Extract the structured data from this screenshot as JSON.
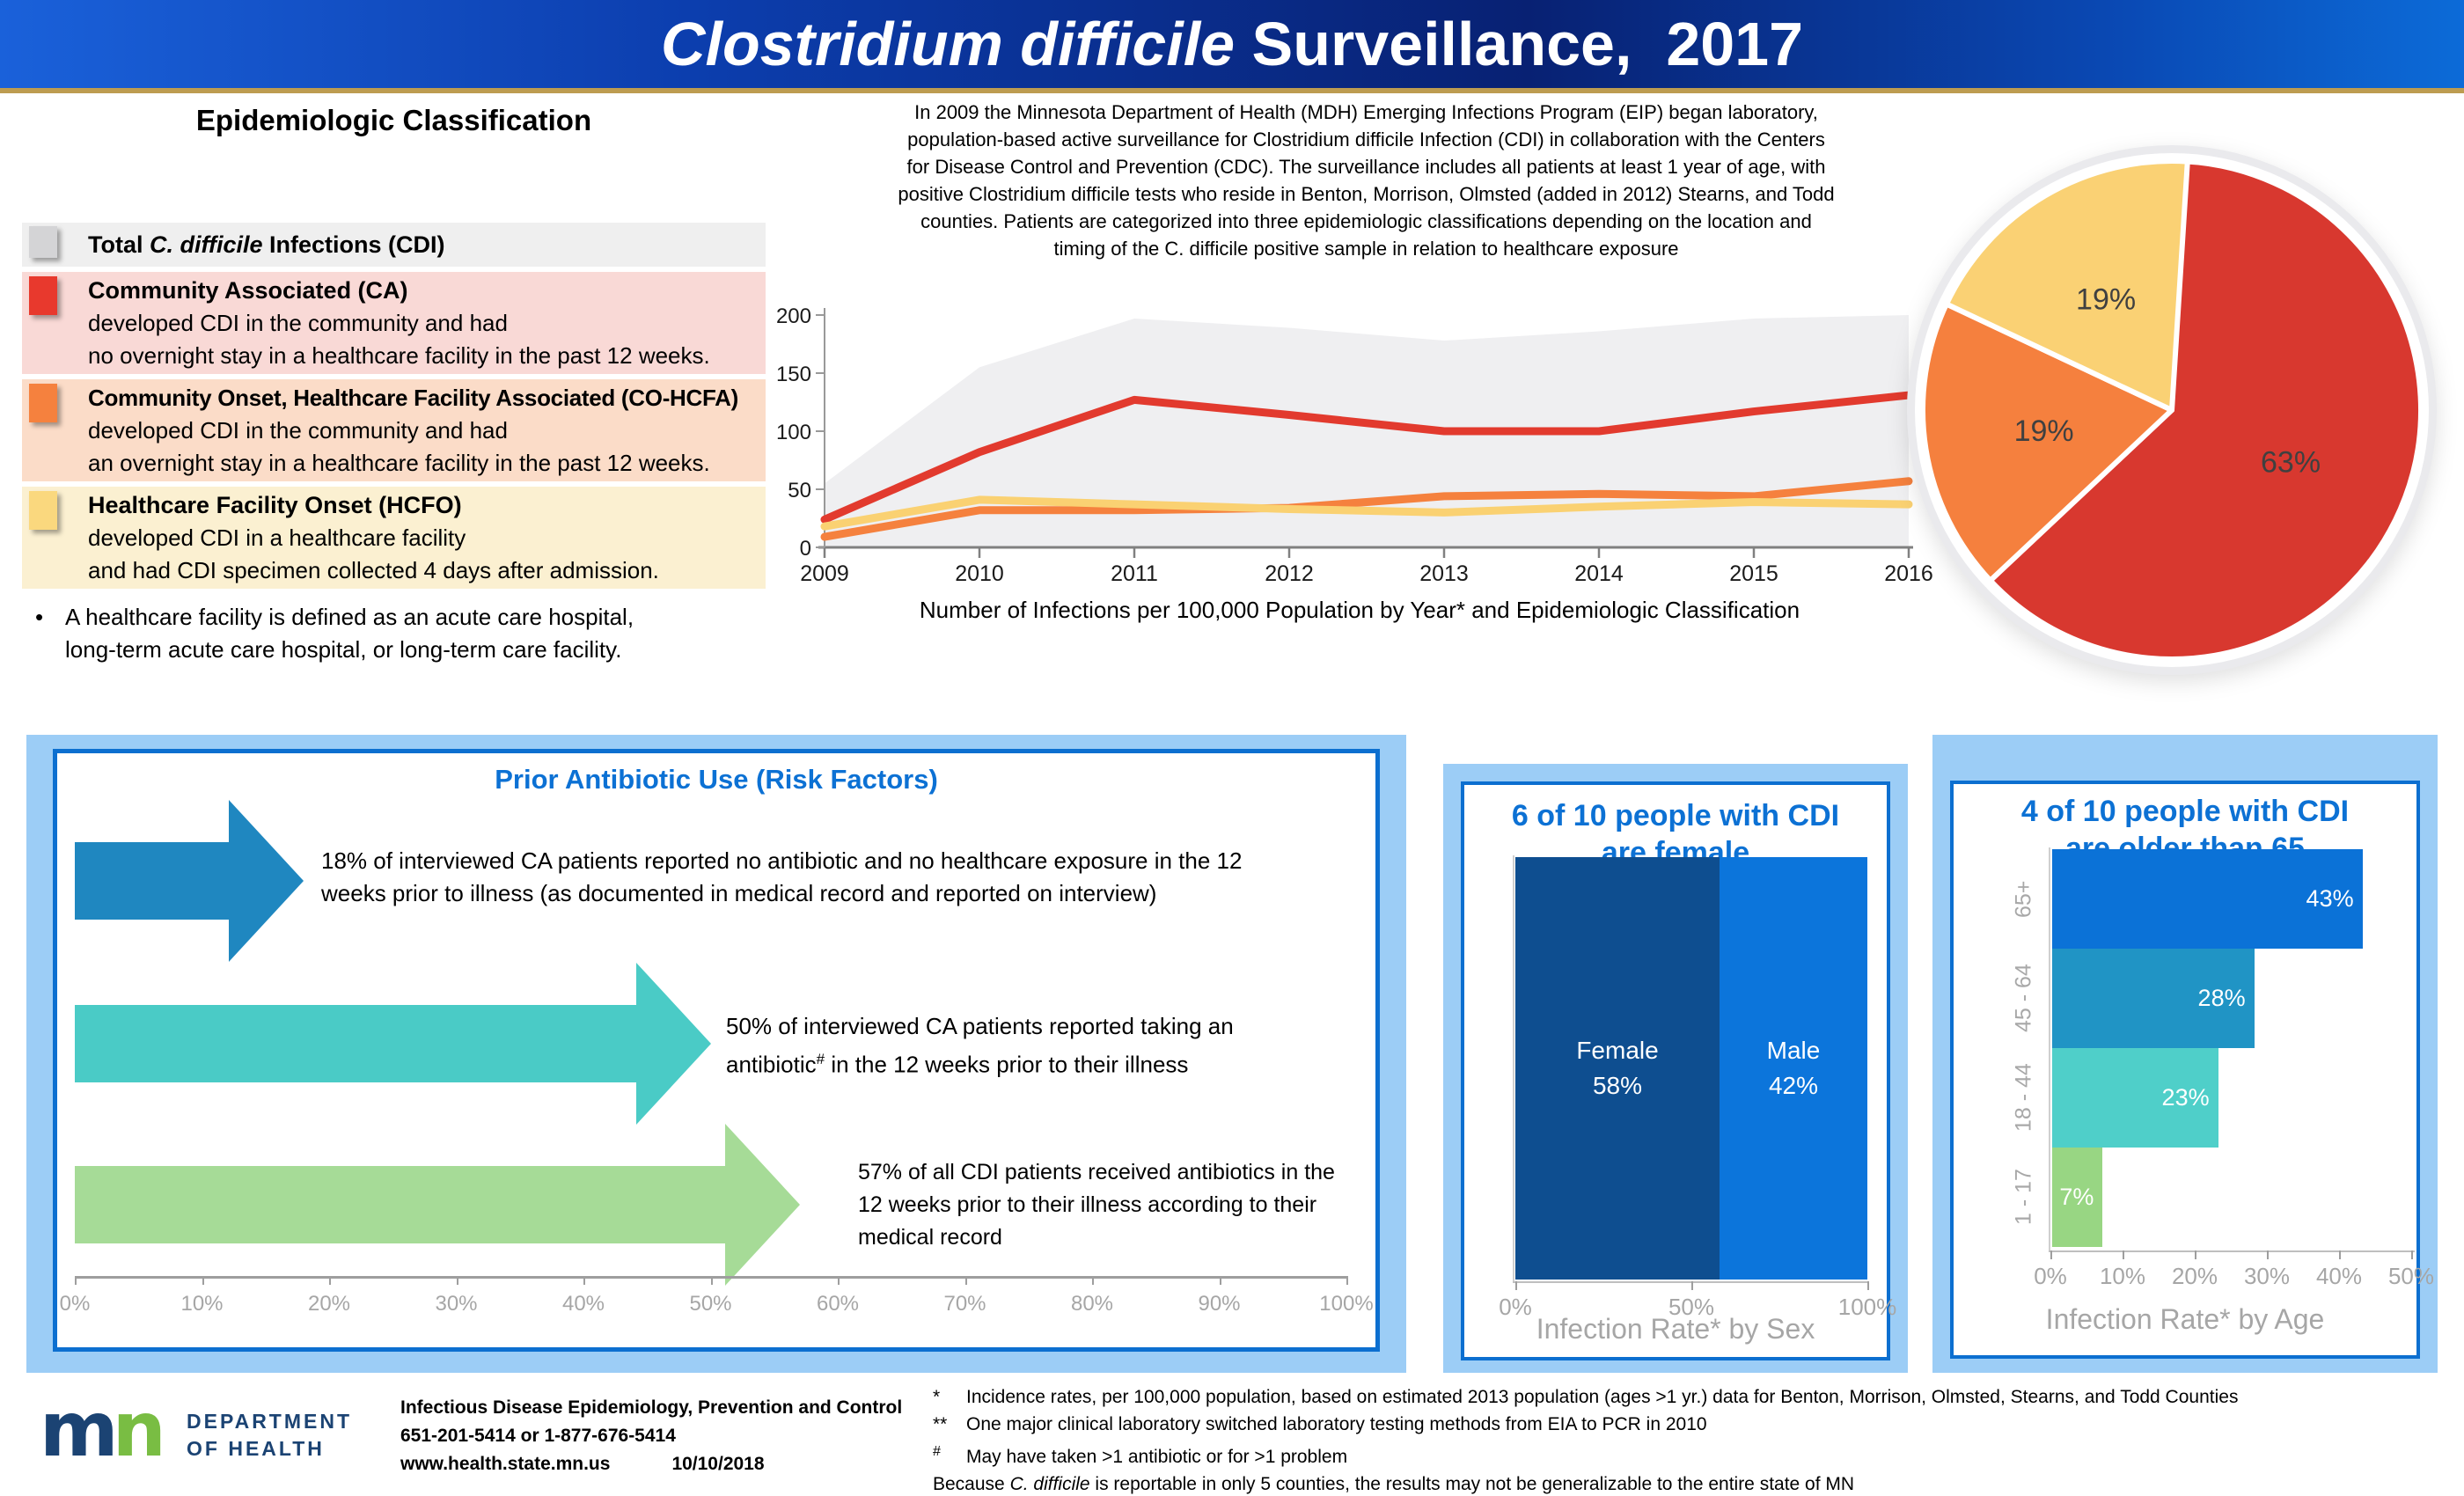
{
  "colors": {
    "accent_blue": "#0C71D4",
    "panel_border": "#0C6FD0",
    "panel_bg": "#9CCDF6",
    "header_gold": "#BD9C50",
    "logo_navy": "#1B4373",
    "logo_green": "#79BD43"
  },
  "header": {
    "title_italic": "Clostridium difficile",
    "title_rest": " Surveillance,  2017"
  },
  "classification": {
    "heading": "Epidemiologic Classification",
    "items": [
      {
        "prefix": "Total ",
        "italic": "C. difficile",
        "suffix": " Infections (CDI)",
        "swatch": "#D4D4D6",
        "bg": "#EFEFEF"
      },
      {
        "title": "Community Associated (CA)",
        "swatch": "#E8392D",
        "bg": "#F9D9D6",
        "lines": [
          "developed CDI in the community and had",
          "no overnight stay in a healthcare facility in the past 12 weeks."
        ]
      },
      {
        "title": "Community Onset, Healthcare Facility Associated (CO-HCFA)",
        "swatch": "#F5813E",
        "bg": "#FBDCC8",
        "lines": [
          "developed CDI in the community and had",
          "an overnight stay in a healthcare facility in the past 12 weeks."
        ]
      },
      {
        "title": "Healthcare Facility Onset (HCFO)",
        "swatch": "#FAD87E",
        "bg": "#FBF0D1",
        "lines": [
          "developed CDI in a healthcare facility",
          "and had CDI specimen collected 4 days after admission."
        ]
      }
    ],
    "note_lines": [
      "A healthcare facility is defined as an acute care hospital,",
      "long-term acute care hospital, or long-term care facility."
    ]
  },
  "intro_lines": [
    "In 2009 the Minnesota Department of Health (MDH) Emerging Infections Program (EIP) began laboratory,",
    "population-based active surveillance for Clostridium difficile Infection (CDI) in collaboration with the Centers",
    "for Disease Control and Prevention (CDC). The surveillance includes all patients at least 1 year of age, with",
    "positive Clostridium difficile tests who reside in Benton, Morrison, Olmsted (added in 2012) Stearns, and Todd",
    "counties. Patients are categorized into three epidemiologic classifications depending on the location and",
    "timing of the C. difficile positive sample in relation to healthcare exposure"
  ],
  "chart_data": {
    "infections_by_year": {
      "type": "line",
      "title": "Number of Infections per 100,000 Population by Year* and Epidemiologic Classification",
      "x": [
        2009,
        2010,
        2011,
        2012,
        2013,
        2014,
        2015,
        2016
      ],
      "ylim": [
        0,
        200
      ],
      "yticks": [
        0,
        50,
        100,
        150,
        200
      ],
      "grid": false,
      "series": [
        {
          "name": "Total C. difficile Infections (CDI)",
          "style": "area",
          "color": "#EFEFF1",
          "values": [
            55,
            155,
            197,
            189,
            178,
            186,
            197,
            200
          ]
        },
        {
          "name": "Community Associated (CA)",
          "style": "line",
          "color": "#E23A2E",
          "values": [
            24,
            82,
            127,
            114,
            100,
            100,
            117,
            131
          ]
        },
        {
          "name": "Community Onset, Healthcare Facility Associated (CO-HCFA)",
          "style": "line",
          "color": "#F5813E",
          "values": [
            9,
            32,
            32,
            34,
            44,
            46,
            44,
            57
          ]
        },
        {
          "name": "Healthcare Facility Onset (HCFO)",
          "style": "line",
          "color": "#FAD172",
          "values": [
            18,
            41,
            37,
            33,
            30,
            35,
            39,
            37
          ]
        }
      ]
    },
    "classification_pie": {
      "type": "pie",
      "start": "top",
      "clockwise": true,
      "slices": [
        {
          "label": "63%",
          "value": 63,
          "color": "#D8382F"
        },
        {
          "label": "19%",
          "value": 19,
          "color": "#F5803E"
        },
        {
          "label": "19%",
          "value": 19,
          "color": "#FAD174"
        }
      ]
    },
    "risk": {
      "title": "Prior Antibiotic Use (Risk Factors)",
      "xticks": [
        "0%",
        "10%",
        "20%",
        "30%",
        "40%",
        "50%",
        "60%",
        "70%",
        "80%",
        "90%",
        "100%"
      ],
      "arrows": [
        {
          "value": 18,
          "color": "#1F87C0",
          "lines": [
            "18% of interviewed CA patients reported no antibiotic and no healthcare exposure in the 12",
            "weeks prior to illness (as documented in medical record and reported on interview)"
          ]
        },
        {
          "value": 50,
          "color": "#4ACBC6",
          "line1": "50% of interviewed CA patients reported taking an",
          "line2_before": "antibiotic",
          "line2_sup": "#",
          "line2_after": " in the 12 weeks prior to their illness"
        },
        {
          "value": 57,
          "color": "#A6DB97",
          "lines": [
            "57% of all CDI patients received antibiotics in the",
            "12 weeks prior to their illness according to their",
            "medical record"
          ]
        }
      ]
    },
    "sex": {
      "type": "stacked-bar",
      "title_lines": [
        "6 of 10 people with CDI",
        "are female"
      ],
      "segments": [
        {
          "label": "Female",
          "pct_label": "58%",
          "value": 58,
          "color": "#0E4E90"
        },
        {
          "label": "Male",
          "pct_label": "42%",
          "value": 42,
          "color": "#0C75DB"
        }
      ],
      "xticks": [
        "0%",
        "50%",
        "100%"
      ],
      "xlabel": "Infection Rate* by Sex"
    },
    "age": {
      "type": "bar",
      "title_lines": [
        "4 of 10 people with CDI",
        "are older than 65"
      ],
      "categories": [
        "65+",
        "45 - 64",
        "18 - 44",
        "1 - 17"
      ],
      "values": [
        43,
        28,
        23,
        7
      ],
      "labels": [
        "43%",
        "28%",
        "23%",
        "7%"
      ],
      "colors": [
        "#0B72D7",
        "#2094C5",
        "#4FCFC9",
        "#98D683"
      ],
      "xlim": [
        0,
        50
      ],
      "xticks": [
        "0%",
        "10%",
        "20%",
        "30%",
        "40%",
        "50%"
      ],
      "xlabel": "Infection Rate* by Age"
    }
  },
  "footer": {
    "logo_m": "m",
    "logo_n": "n",
    "org_lines": [
      "DEPARTMENT",
      "OF HEALTH"
    ],
    "contact_lines": [
      "Infectious Disease Epidemiology, Prevention and Control",
      "651-201-5414  or 1-877-676-5414"
    ],
    "web": "www.health.state.mn.us",
    "date": "10/10/2018",
    "footnotes": [
      {
        "mark": "*",
        "text": "Incidence rates, per 100,000 population, based on estimated 2013 population (ages >1 yr.) data for Benton, Morrison, Olmsted, Stearns, and Todd Counties"
      },
      {
        "mark": "**",
        "text": "One major clinical laboratory switched laboratory testing methods from EIA to PCR in 2010"
      },
      {
        "mark": "#",
        "text": "May have taken >1 antibiotic or for >1 problem"
      }
    ],
    "closing": {
      "prefix": "Because ",
      "italic": "C. difficile",
      "suffix": "  is reportable in only 5 counties, the results may not be generalizable to the entire state of MN"
    }
  }
}
